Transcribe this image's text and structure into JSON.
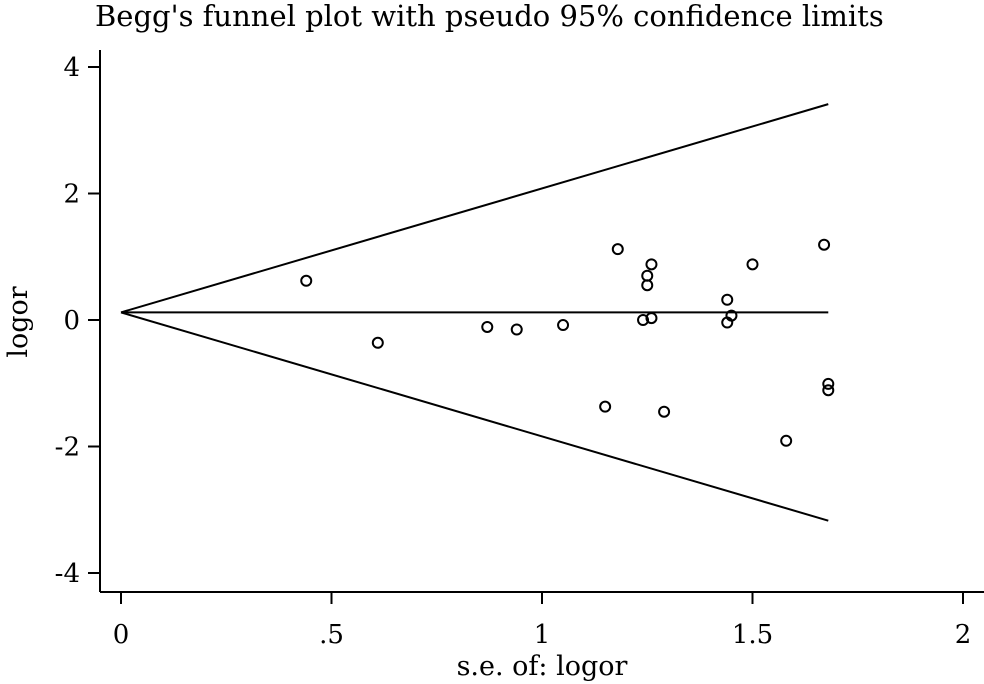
{
  "chart_data": {
    "type": "scatter",
    "title": "Begg's funnel plot with pseudo 95% confidence limits",
    "xlabel": "s.e. of: logor",
    "ylabel": "logor",
    "xlim": [
      0,
      2
    ],
    "ylim": [
      -4,
      4
    ],
    "x_ticks": [
      {
        "value": 0,
        "label": "0"
      },
      {
        "value": 0.5,
        "label": ".5"
      },
      {
        "value": 1,
        "label": "1"
      },
      {
        "value": 1.5,
        "label": "1.5"
      },
      {
        "value": 2,
        "label": "2"
      }
    ],
    "y_ticks": [
      {
        "value": -4,
        "label": "-4"
      },
      {
        "value": -2,
        "label": "-2"
      },
      {
        "value": 0,
        "label": "0"
      },
      {
        "value": 2,
        "label": "2"
      },
      {
        "value": 4,
        "label": "4"
      }
    ],
    "pooled_estimate": 0.12,
    "ci_se_max": 1.68,
    "grid": false,
    "legend": "none",
    "points": [
      {
        "x": 0.44,
        "y": 0.62
      },
      {
        "x": 0.61,
        "y": -0.36
      },
      {
        "x": 0.87,
        "y": -0.11
      },
      {
        "x": 0.94,
        "y": -0.15
      },
      {
        "x": 1.05,
        "y": -0.08
      },
      {
        "x": 1.15,
        "y": -1.37
      },
      {
        "x": 1.18,
        "y": 1.12
      },
      {
        "x": 1.24,
        "y": 0.0
      },
      {
        "x": 1.25,
        "y": 0.7
      },
      {
        "x": 1.25,
        "y": 0.55
      },
      {
        "x": 1.26,
        "y": 0.88
      },
      {
        "x": 1.26,
        "y": 0.03
      },
      {
        "x": 1.29,
        "y": -1.45
      },
      {
        "x": 1.44,
        "y": 0.32
      },
      {
        "x": 1.44,
        "y": -0.04
      },
      {
        "x": 1.45,
        "y": 0.07
      },
      {
        "x": 1.5,
        "y": 0.88
      },
      {
        "x": 1.58,
        "y": -1.91
      },
      {
        "x": 1.67,
        "y": 1.19
      },
      {
        "x": 1.68,
        "y": -1.01
      },
      {
        "x": 1.68,
        "y": -1.11
      }
    ]
  }
}
